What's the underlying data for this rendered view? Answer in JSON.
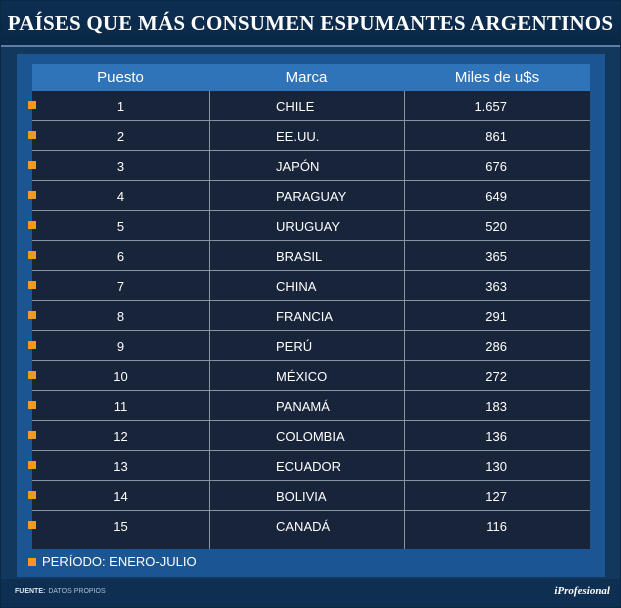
{
  "title": "PAÍSES QUE MÁS CONSUMEN ESPUMANTES ARGENTINOS",
  "table": {
    "headers": {
      "position": "Puesto",
      "brand": "Marca",
      "value": "Miles de u$s"
    },
    "rows": [
      {
        "position": "1",
        "brand": "CHILE",
        "value": "1.657"
      },
      {
        "position": "2",
        "brand": "EE.UU.",
        "value": "861"
      },
      {
        "position": "3",
        "brand": "JAPÓN",
        "value": "676"
      },
      {
        "position": "4",
        "brand": "PARAGUAY",
        "value": "649"
      },
      {
        "position": "5",
        "brand": "URUGUAY",
        "value": "520"
      },
      {
        "position": "6",
        "brand": "BRASIL",
        "value": "365"
      },
      {
        "position": "7",
        "brand": "CHINA",
        "value": "363"
      },
      {
        "position": "8",
        "brand": "FRANCIA",
        "value": "291"
      },
      {
        "position": "9",
        "brand": "PERÚ",
        "value": "286"
      },
      {
        "position": "10",
        "brand": "MÉXICO",
        "value": "272"
      },
      {
        "position": "11",
        "brand": "PANAMÁ",
        "value": "183"
      },
      {
        "position": "12",
        "brand": "COLOMBIA",
        "value": "136"
      },
      {
        "position": "13",
        "brand": "ECUADOR",
        "value": "130"
      },
      {
        "position": "14",
        "brand": "BOLIVIA",
        "value": "127"
      },
      {
        "position": "15",
        "brand": "CANADÁ",
        "value": "116"
      }
    ]
  },
  "period": "PERÍODO: ENERO-JULIO",
  "footer": {
    "source_label": "FUENTE:",
    "source_text": "DATOS PROPIOS",
    "logo": "iProfesional"
  },
  "colors": {
    "background": "#12385e",
    "panel": "#1b5693",
    "table": "#18243a",
    "header": "#2f74b8",
    "bullet": "#f29a1f"
  }
}
